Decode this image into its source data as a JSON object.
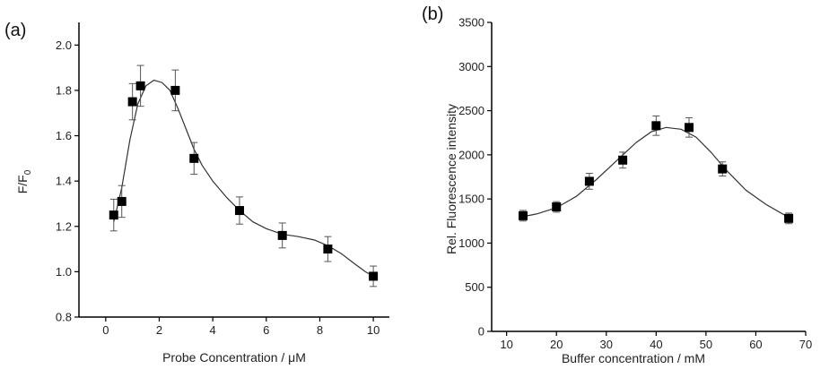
{
  "chart_data": [
    {
      "panel_label": "(a)",
      "type": "scatter",
      "xlabel": "Probe Concentration / μM",
      "ylabel": "F/F",
      "ylabel_sub": "0",
      "xlim": [
        -1,
        10.6
      ],
      "ylim": [
        0.8,
        2.1
      ],
      "xticks": [
        0,
        2,
        4,
        6,
        8,
        10
      ],
      "yticks": [
        0.8,
        1.0,
        1.2,
        1.4,
        1.6,
        1.8,
        2.0
      ],
      "ytick_labels": [
        "0.8",
        "1.0",
        "1.2",
        "1.4",
        "1.6",
        "1.8",
        "2.0"
      ],
      "points": [
        {
          "x": 0.3,
          "y": 1.25,
          "err": 0.07
        },
        {
          "x": 0.6,
          "y": 1.31,
          "err": 0.07
        },
        {
          "x": 1.0,
          "y": 1.75,
          "err": 0.08
        },
        {
          "x": 1.3,
          "y": 1.82,
          "err": 0.09
        },
        {
          "x": 2.6,
          "y": 1.8,
          "err": 0.09
        },
        {
          "x": 3.3,
          "y": 1.5,
          "err": 0.07
        },
        {
          "x": 5.0,
          "y": 1.27,
          "err": 0.06
        },
        {
          "x": 6.6,
          "y": 1.16,
          "err": 0.055
        },
        {
          "x": 8.3,
          "y": 1.1,
          "err": 0.055
        },
        {
          "x": 10.0,
          "y": 0.98,
          "err": 0.045
        }
      ],
      "curve": [
        [
          0.3,
          1.22
        ],
        [
          0.6,
          1.37
        ],
        [
          0.9,
          1.58
        ],
        [
          1.2,
          1.74
        ],
        [
          1.5,
          1.82
        ],
        [
          1.8,
          1.845
        ],
        [
          2.1,
          1.835
        ],
        [
          2.4,
          1.8
        ],
        [
          2.7,
          1.72
        ],
        [
          3.0,
          1.63
        ],
        [
          3.3,
          1.54
        ],
        [
          3.6,
          1.47
        ],
        [
          4.0,
          1.4
        ],
        [
          4.5,
          1.33
        ],
        [
          5.0,
          1.27
        ],
        [
          5.5,
          1.22
        ],
        [
          6.0,
          1.19
        ],
        [
          6.6,
          1.165
        ],
        [
          7.2,
          1.155
        ],
        [
          7.8,
          1.14
        ],
        [
          8.3,
          1.115
        ],
        [
          8.8,
          1.08
        ],
        [
          9.3,
          1.035
        ],
        [
          9.7,
          1.0
        ],
        [
          10.0,
          0.98
        ]
      ]
    },
    {
      "panel_label": "(b)",
      "type": "scatter",
      "xlabel": "Buffer concentration / mM",
      "ylabel": "Rel. Fluorescence intensity",
      "xlim": [
        7,
        70
      ],
      "ylim": [
        0,
        3500
      ],
      "xticks": [
        10,
        20,
        30,
        40,
        50,
        60,
        70
      ],
      "yticks": [
        0,
        500,
        1000,
        1500,
        2000,
        2500,
        3000,
        3500
      ],
      "points": [
        {
          "x": 13.3,
          "y": 1310,
          "err": 60
        },
        {
          "x": 20.0,
          "y": 1410,
          "err": 60
        },
        {
          "x": 26.6,
          "y": 1700,
          "err": 90
        },
        {
          "x": 33.3,
          "y": 1940,
          "err": 90
        },
        {
          "x": 40.0,
          "y": 2330,
          "err": 110
        },
        {
          "x": 46.6,
          "y": 2310,
          "err": 110
        },
        {
          "x": 53.3,
          "y": 1840,
          "err": 80
        },
        {
          "x": 66.6,
          "y": 1280,
          "err": 60
        }
      ],
      "curve": [
        [
          13.3,
          1300
        ],
        [
          16,
          1330
        ],
        [
          20,
          1400
        ],
        [
          24,
          1530
        ],
        [
          28,
          1720
        ],
        [
          32,
          1930
        ],
        [
          36,
          2140
        ],
        [
          39,
          2260
        ],
        [
          42,
          2310
        ],
        [
          45,
          2290
        ],
        [
          48,
          2200
        ],
        [
          51,
          2030
        ],
        [
          54,
          1830
        ],
        [
          58,
          1600
        ],
        [
          62,
          1440
        ],
        [
          66.6,
          1290
        ]
      ]
    }
  ]
}
